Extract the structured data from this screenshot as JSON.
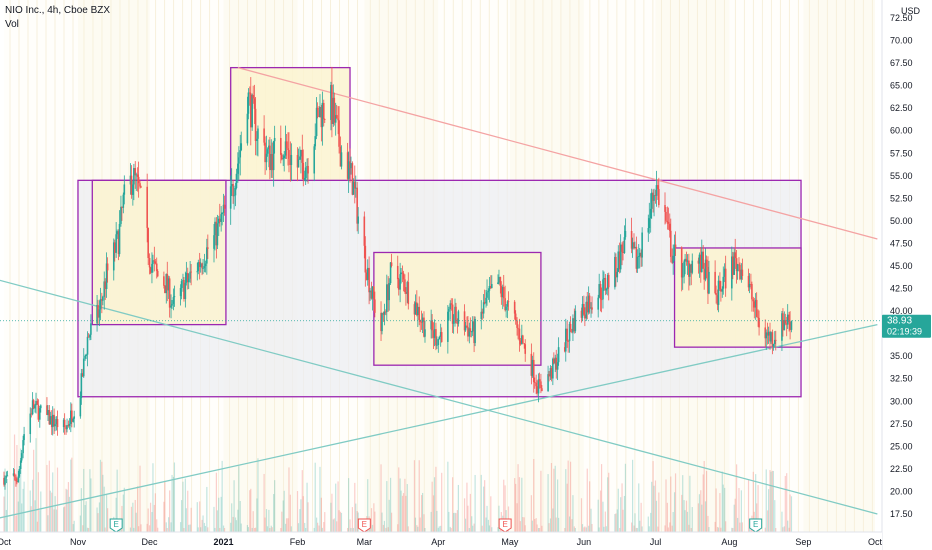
{
  "legend": {
    "symbol": "NIO Inc., 4h, Cboe BZX",
    "volume_label": "Vol"
  },
  "price_axis": {
    "currency": "USD"
  },
  "price_tag": {
    "price": "38.93",
    "countdown": "02:19:39"
  },
  "colors": {
    "up": "#26a69a",
    "down": "#ef5350",
    "box_stroke": "#9c27b0",
    "box_fill_yellow": "#fbf3d0",
    "box_fill_grey": "#eceef2",
    "resistance_line": "#f4a3a3",
    "support_line": "#80cbc4",
    "price_tag_bg": "#26a69a"
  },
  "earnings_marker": "E",
  "chart_data": {
    "type": "candlestick",
    "title": "NIO Inc., 4h, Cboe BZX",
    "ylim": [
      15.5,
      74.5
    ],
    "y_ticks": [
      17.5,
      20.0,
      22.5,
      25.0,
      27.5,
      30.0,
      32.5,
      35.0,
      37.5,
      40.0,
      42.5,
      45.0,
      47.5,
      50.0,
      52.5,
      55.0,
      57.5,
      60.0,
      62.5,
      65.0,
      67.5,
      70.0,
      72.5
    ],
    "y_tick_labels": [
      "17.50",
      "20.00",
      "22.50",
      "25.00",
      "27.50",
      "30.00",
      "32.50",
      "35.00",
      "37.50",
      "40.00",
      "42.50",
      "45.00",
      "47.50",
      "50.00",
      "52.50",
      "55.00",
      "57.50",
      "60.00",
      "62.50",
      "65.00",
      "67.50",
      "70.00",
      "72.50"
    ],
    "x_ticks": [
      {
        "label": "Oct",
        "date": "2020-10-01"
      },
      {
        "label": "Nov",
        "date": "2020-11-01"
      },
      {
        "label": "Dec",
        "date": "2020-12-01"
      },
      {
        "label": "2021",
        "date": "2021-01-01"
      },
      {
        "label": "Feb",
        "date": "2021-02-01"
      },
      {
        "label": "Mar",
        "date": "2021-03-01"
      },
      {
        "label": "Apr",
        "date": "2021-04-01"
      },
      {
        "label": "May",
        "date": "2021-05-01"
      },
      {
        "label": "Jun",
        "date": "2021-06-01"
      },
      {
        "label": "Jul",
        "date": "2021-07-01"
      },
      {
        "label": "Aug",
        "date": "2021-08-01"
      },
      {
        "label": "Sep",
        "date": "2021-09-01"
      },
      {
        "label": "Oct",
        "date": "2021-10-01"
      }
    ],
    "price_path": [
      [
        "2020-10-01",
        21.5
      ],
      [
        "2020-10-07",
        21.3
      ],
      [
        "2020-10-09",
        26.0
      ],
      [
        "2020-10-13",
        29.5
      ],
      [
        "2020-10-20",
        28.0
      ],
      [
        "2020-10-27",
        27.0
      ],
      [
        "2020-11-02",
        31.0
      ],
      [
        "2020-11-05",
        37.0
      ],
      [
        "2020-11-10",
        40.0
      ],
      [
        "2020-11-13",
        44.0
      ],
      [
        "2020-11-18",
        48.0
      ],
      [
        "2020-11-20",
        52.0
      ],
      [
        "2020-11-24",
        55.0
      ],
      [
        "2020-11-27",
        53.0
      ],
      [
        "2020-12-01",
        46.0
      ],
      [
        "2020-12-04",
        44.0
      ],
      [
        "2020-12-08",
        43.0
      ],
      [
        "2020-12-11",
        40.5
      ],
      [
        "2020-12-15",
        42.5
      ],
      [
        "2020-12-21",
        45.0
      ],
      [
        "2020-12-28",
        48.0
      ],
      [
        "2021-01-04",
        52.5
      ],
      [
        "2021-01-08",
        58.0
      ],
      [
        "2021-01-11",
        64.0
      ],
      [
        "2021-01-15",
        60.0
      ],
      [
        "2021-01-20",
        57.0
      ],
      [
        "2021-01-26",
        58.5
      ],
      [
        "2021-02-01",
        56.0
      ],
      [
        "2021-02-05",
        56.5
      ],
      [
        "2021-02-10",
        62.0
      ],
      [
        "2021-02-15",
        63.0
      ],
      [
        "2021-02-19",
        58.0
      ],
      [
        "2021-02-24",
        54.5
      ],
      [
        "2021-02-28",
        48.0
      ],
      [
        "2021-03-04",
        42.0
      ],
      [
        "2021-03-08",
        38.0
      ],
      [
        "2021-03-12",
        44.0
      ],
      [
        "2021-03-17",
        43.5
      ],
      [
        "2021-03-22",
        41.0
      ],
      [
        "2021-03-26",
        38.5
      ],
      [
        "2021-04-01",
        37.0
      ],
      [
        "2021-04-06",
        39.5
      ],
      [
        "2021-04-12",
        38.5
      ],
      [
        "2021-04-16",
        37.5
      ],
      [
        "2021-04-21",
        41.0
      ],
      [
        "2021-04-26",
        43.0
      ],
      [
        "2021-04-30",
        40.5
      ],
      [
        "2021-05-05",
        37.5
      ],
      [
        "2021-05-10",
        34.0
      ],
      [
        "2021-05-13",
        31.5
      ],
      [
        "2021-05-18",
        33.0
      ],
      [
        "2021-05-24",
        36.5
      ],
      [
        "2021-05-28",
        39.0
      ],
      [
        "2021-06-03",
        41.0
      ],
      [
        "2021-06-09",
        42.5
      ],
      [
        "2021-06-14",
        44.5
      ],
      [
        "2021-06-18",
        47.5
      ],
      [
        "2021-06-23",
        45.5
      ],
      [
        "2021-06-28",
        50.0
      ],
      [
        "2021-07-01",
        54.0
      ],
      [
        "2021-07-05",
        50.5
      ],
      [
        "2021-07-08",
        46.5
      ],
      [
        "2021-07-13",
        44.5
      ],
      [
        "2021-07-16",
        45.5
      ],
      [
        "2021-07-21",
        45.0
      ],
      [
        "2021-07-26",
        41.0
      ],
      [
        "2021-07-29",
        43.0
      ],
      [
        "2021-08-03",
        45.5
      ],
      [
        "2021-08-06",
        45.0
      ],
      [
        "2021-08-10",
        42.0
      ],
      [
        "2021-08-13",
        39.0
      ],
      [
        "2021-08-16",
        37.5
      ],
      [
        "2021-08-19",
        37.0
      ],
      [
        "2021-08-24",
        39.0
      ],
      [
        "2021-08-27",
        38.93
      ]
    ],
    "annotations": {
      "boxes": [
        {
          "name": "consolidation-range",
          "from": "2020-11-01",
          "to": "2021-08-31",
          "top": 54.5,
          "bottom": 30.5,
          "fill": "grey"
        },
        {
          "name": "box-nov-dec",
          "from": "2020-11-07",
          "to": "2021-01-02",
          "top": 54.5,
          "bottom": 38.5,
          "fill": "yellow"
        },
        {
          "name": "box-jan-feb",
          "from": "2021-01-04",
          "to": "2021-02-23",
          "top": 67.0,
          "bottom": 54.5,
          "fill": "yellow"
        },
        {
          "name": "box-mar-may",
          "from": "2021-03-05",
          "to": "2021-05-14",
          "top": 46.5,
          "bottom": 34.0,
          "fill": "yellow"
        },
        {
          "name": "box-jul-aug",
          "from": "2021-07-09",
          "to": "2021-08-31",
          "top": 47.0,
          "bottom": 36.0,
          "fill": "yellow"
        }
      ],
      "trendlines": [
        {
          "name": "resistance-trendline",
          "from": [
            "2021-01-07",
            67.0
          ],
          "to": [
            "2021-10-02",
            48.0
          ],
          "color": "resistance"
        },
        {
          "name": "support-trendline",
          "from": [
            "2020-09-28",
            17.0
          ],
          "to": [
            "2021-10-02",
            38.5
          ],
          "color": "support"
        },
        {
          "name": "descending-trendline",
          "from": [
            "2020-09-28",
            43.5
          ],
          "to": [
            "2021-10-02",
            17.5
          ],
          "color": "support"
        }
      ],
      "earnings_dates": [
        "2020-11-17",
        "2021-03-01",
        "2021-04-29",
        "2021-08-12"
      ]
    }
  }
}
